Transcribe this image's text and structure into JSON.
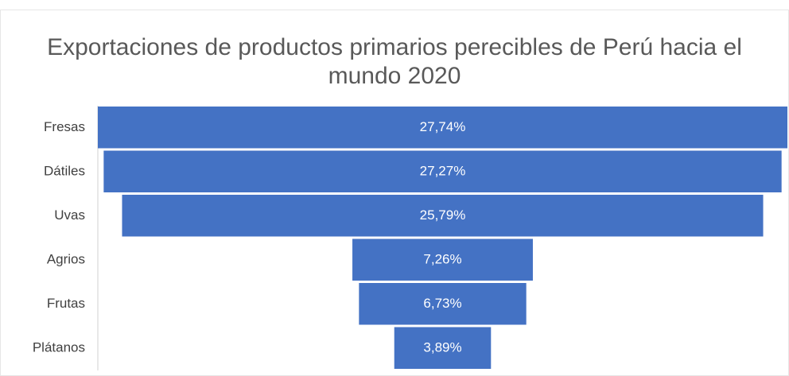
{
  "chart_data": {
    "type": "funnel",
    "title": "Exportaciones de productos primarios perecibles de Perú hacia el mundo 2020",
    "categories": [
      "Fresas",
      "Dátiles",
      "Uvas",
      "Agrios",
      "Frutas",
      "Plátanos"
    ],
    "values": [
      27.74,
      27.27,
      25.79,
      7.26,
      6.73,
      3.89
    ],
    "value_labels": [
      "27,74%",
      "27,27%",
      "25,79%",
      "7,26%",
      "6,73%",
      "3,89%"
    ],
    "color": "#4472c4"
  }
}
